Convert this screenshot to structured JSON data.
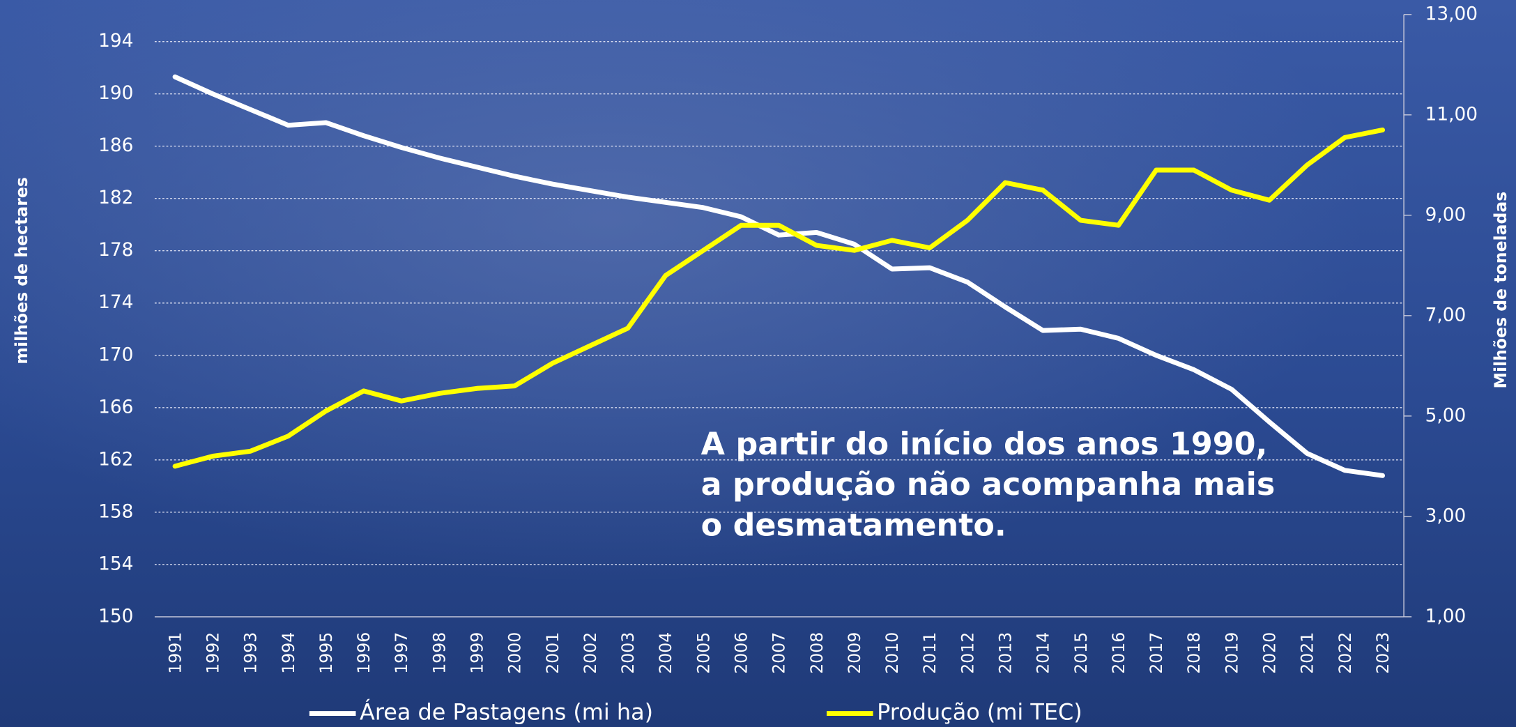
{
  "chart_data": {
    "type": "line",
    "categories": [
      "1991",
      "1992",
      "1993",
      "1994",
      "1995",
      "1996",
      "1997",
      "1998",
      "1999",
      "2000",
      "2001",
      "2002",
      "2003",
      "2004",
      "2005",
      "2006",
      "2007",
      "2008",
      "2009",
      "2010",
      "2011",
      "2012",
      "2013",
      "2014",
      "2015",
      "2016",
      "2017",
      "2018",
      "2019",
      "2020",
      "2021",
      "2022",
      "2023"
    ],
    "series": [
      {
        "name": "Área de Pastagens (mi ha)",
        "color": "#ffffff",
        "values": [
          191.3,
          190.0,
          188.8,
          187.6,
          187.8,
          186.8,
          185.9,
          185.1,
          184.4,
          183.7,
          183.1,
          182.6,
          182.1,
          181.7,
          181.3,
          180.6,
          179.2,
          179.4,
          178.5,
          176.6,
          176.7,
          175.6,
          173.7,
          171.9,
          172.0,
          171.3,
          170.0,
          168.9,
          167.4,
          164.9,
          162.5,
          161.2,
          160.8
        ]
      },
      {
        "name": "Produção (mi TEC)",
        "color": "#ffff00",
        "axis": "y2",
        "values": [
          4.0,
          4.2,
          4.3,
          4.6,
          5.1,
          5.5,
          5.3,
          5.45,
          5.55,
          5.6,
          6.05,
          6.4,
          6.75,
          7.8,
          8.3,
          8.8,
          8.8,
          8.4,
          8.3,
          8.5,
          8.35,
          8.9,
          9.65,
          9.5,
          8.9,
          8.8,
          9.9,
          9.9,
          9.5,
          9.3,
          10.0,
          10.55,
          10.7
        ]
      }
    ],
    "ylim": [
      150,
      194
    ],
    "yticks": [
      150,
      154,
      158,
      162,
      166,
      170,
      174,
      178,
      182,
      186,
      190,
      194
    ],
    "y2lim": [
      1,
      13
    ],
    "y2ticks": [
      {
        "value": 1,
        "label": "1,00"
      },
      {
        "value": 3,
        "label": "3,00"
      },
      {
        "value": 5,
        "label": "5,00"
      },
      {
        "value": 7,
        "label": "7,00"
      },
      {
        "value": 9,
        "label": "9,00"
      },
      {
        "value": 11,
        "label": "11,00"
      },
      {
        "value": 13,
        "label": "13,00"
      }
    ],
    "ylabel": "milhões de hectares",
    "y2label": "Milhões de toneladas",
    "annotation": [
      "A partir do início dos anos 1990,",
      "a produção não acompanha mais",
      "o desmatamento."
    ],
    "grid": true
  }
}
